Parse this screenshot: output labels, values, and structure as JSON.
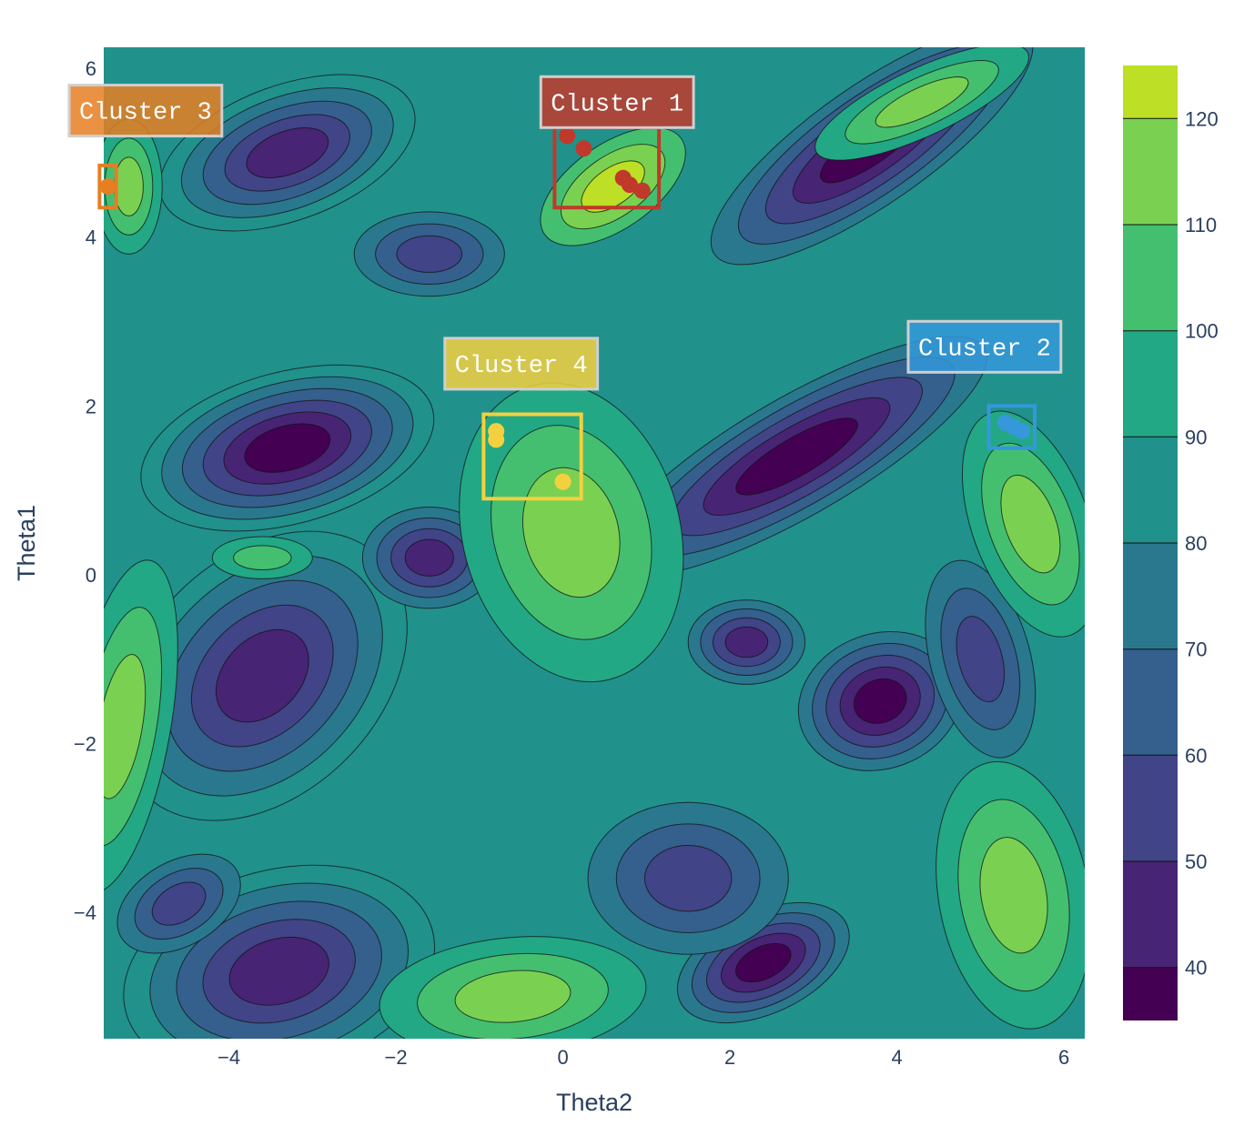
{
  "chart_data": {
    "type": "contour",
    "title": "",
    "xlabel": "Theta2",
    "ylabel": "Theta1",
    "xlim": [
      -5.5,
      6.25
    ],
    "ylim": [
      -5.5,
      6.25
    ],
    "x_ticks": [
      -4,
      -2,
      0,
      2,
      4,
      6
    ],
    "y_ticks": [
      -4,
      -2,
      0,
      2,
      4,
      6
    ],
    "x_tick_labels": [
      "−4",
      "−2",
      "0",
      "2",
      "4",
      "6"
    ],
    "y_tick_labels": [
      "−4",
      "−2",
      "0",
      "2",
      "4",
      "6"
    ],
    "colorscale": "Viridis",
    "colorbar": {
      "range": [
        35,
        125
      ],
      "ticks": [
        40,
        50,
        60,
        70,
        80,
        90,
        100,
        110,
        120
      ],
      "tick_labels": [
        "40",
        "50",
        "60",
        "70",
        "80",
        "90",
        "100",
        "110",
        "120"
      ],
      "contour_levels": [
        40,
        50,
        60,
        70,
        80,
        90,
        100,
        110,
        120
      ]
    },
    "level_colors": [
      "#440154",
      "#482475",
      "#414487",
      "#355f8d",
      "#2a788e",
      "#21918c",
      "#22a884",
      "#44bf70",
      "#7ad151",
      "#bddf26",
      "#fde725"
    ],
    "clusters": [
      {
        "name": "Cluster 1",
        "color": "#c0392b",
        "label_pos": [
          0.65,
          5.6
        ],
        "box": {
          "x0": -0.1,
          "x1": 1.15,
          "y0": 4.35,
          "y1": 5.3
        },
        "points": [
          [
            0.05,
            5.2
          ],
          [
            0.25,
            5.05
          ],
          [
            0.72,
            4.7
          ],
          [
            0.8,
            4.62
          ],
          [
            0.95,
            4.55
          ]
        ]
      },
      {
        "name": "Cluster 2",
        "color": "#3498db",
        "label_pos": [
          5.05,
          2.7
        ],
        "box": {
          "x0": 5.1,
          "x1": 5.65,
          "y0": 1.5,
          "y1": 2.0
        },
        "points": [
          [
            5.3,
            1.8
          ],
          [
            5.4,
            1.75
          ],
          [
            5.5,
            1.7
          ]
        ]
      },
      {
        "name": "Cluster 3",
        "color": "#e67e22",
        "label_pos": [
          -5.0,
          5.5
        ],
        "box": {
          "x0": -5.55,
          "x1": -5.35,
          "y0": 4.35,
          "y1": 4.85
        },
        "points": [
          [
            -5.45,
            4.6
          ]
        ]
      },
      {
        "name": "Cluster 4",
        "color": "#f4d03f",
        "label_pos": [
          -0.5,
          2.5
        ],
        "box": {
          "x0": -0.95,
          "x1": 0.22,
          "y0": 0.9,
          "y1": 1.9
        },
        "points": [
          [
            -0.8,
            1.7
          ],
          [
            -0.8,
            1.6
          ],
          [
            0.0,
            1.1
          ]
        ]
      }
    ]
  }
}
